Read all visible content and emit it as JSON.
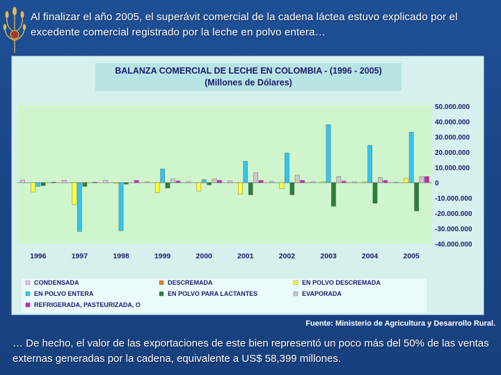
{
  "slide": {
    "headline": "Al finalizar el año 2005, el superávit comercial de la cadena láctea estuvo explicado por el excedente comercial registrado por la leche en polvo entera…",
    "footnote": "… De hecho, el valor de las exportaciones de este bien representó un poco más del 50% de las ventas externas generadas por la cadena, equivalente a US$ 58,399 millones.",
    "source": "Fuente: Ministerio de Agricultura y Desarrollo Rural.",
    "logo_icon": "wheat-sheaf-icon"
  },
  "chart_data": {
    "type": "bar",
    "title": "BALANZA COMERCIAL DE LECHE EN COLOMBIA - (1996 - 2005)",
    "subtitle": "(Millones de Dólares)",
    "categories": [
      "1996",
      "1997",
      "1998",
      "1999",
      "2000",
      "2001",
      "2002",
      "2003",
      "2004",
      "2005"
    ],
    "y_ticks": [
      "50.000.000",
      "40.000.000",
      "30.000.000",
      "20.000.000",
      "10.000.000",
      "0",
      "-10.000.000",
      "-20.000.000",
      "-30.000.000",
      "-40.000.000"
    ],
    "ylim": [
      -40000000,
      50000000
    ],
    "y_axis_position": "right",
    "grid": false,
    "legend_position": "bottom",
    "series": [
      {
        "name": "CONDENSADA",
        "color": "#f2b8e6",
        "values": [
          1800000,
          1700000,
          1500000,
          600000,
          700000,
          1000000,
          900000,
          700000,
          500000,
          400000
        ]
      },
      {
        "name": "DESCREMADA",
        "color": "#f07a2a",
        "values": [
          0,
          0,
          0,
          0,
          0,
          0,
          0,
          0,
          0,
          0
        ]
      },
      {
        "name": "EN POLVO DESCREMADA",
        "color": "#ffff33",
        "values": [
          -6000000,
          -14500000,
          -500000,
          -6500000,
          -5500000,
          -7500000,
          -4000000,
          600000,
          500000,
          3000000
        ]
      },
      {
        "name": "EN POLVO ENTERA",
        "color": "#33c4f0",
        "values": [
          -2500000,
          -32000000,
          -31500000,
          9000000,
          2000000,
          14000000,
          19500000,
          38000000,
          24500000,
          33000000
        ]
      },
      {
        "name": "EN POLVO PARA LACTANTES",
        "color": "#2e7d3c",
        "values": [
          -2000000,
          -2500000,
          -1000000,
          -3500000,
          -1500000,
          -8000000,
          -8000000,
          -15500000,
          -13500000,
          -18500000
        ]
      },
      {
        "name": "EVAPORADA",
        "color": "#c8c8c8",
        "values": [
          0,
          0,
          0,
          2500000,
          2500000,
          6500000,
          5000000,
          4000000,
          3500000,
          4000000
        ]
      },
      {
        "name": "REFRIGERADA, PASTEURIZADA, O",
        "color": "#d21ec3",
        "values": [
          300000,
          300000,
          1500000,
          1000000,
          1500000,
          1500000,
          1500000,
          1000000,
          1500000,
          4000000
        ]
      }
    ]
  }
}
